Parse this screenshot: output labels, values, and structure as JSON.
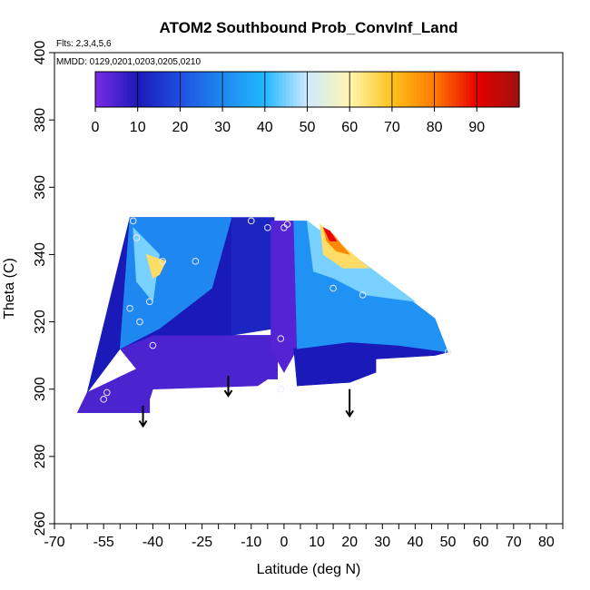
{
  "chart_data": {
    "type": "heatmap",
    "title": "ATOM2 Southbound Prob_ConvInf_Land",
    "flights_note": "Flts: 2,3,4,5,6",
    "dates_note": "MMDD: 0129,0201,0203,0205,0210",
    "xlabel": "Latitude (deg N)",
    "ylabel": "Theta (C)",
    "xlim": [
      -70,
      85
    ],
    "ylim": [
      260,
      400
    ],
    "x_tick_labels": [
      "-70",
      "-55",
      "-40",
      "-25",
      "-10",
      "0",
      "10",
      "20",
      "30",
      "40",
      "50",
      "60",
      "70",
      "80"
    ],
    "x_tick_values": [
      -70,
      -55,
      -40,
      -25,
      -10,
      0,
      10,
      20,
      30,
      40,
      50,
      60,
      70,
      80
    ],
    "x_minor_ticks": [
      -65,
      -60,
      -50,
      -45,
      -35,
      -30,
      -20,
      -15,
      -5,
      5,
      15,
      25,
      35,
      45,
      55,
      65,
      75,
      85
    ],
    "y_tick_labels": [
      "260",
      "280",
      "300",
      "320",
      "340",
      "360",
      "380",
      "400"
    ],
    "y_tick_values": [
      260,
      280,
      300,
      320,
      340,
      360,
      380,
      400
    ],
    "colorbar": {
      "range": [
        0,
        100
      ],
      "tick_labels": [
        "0",
        "10",
        "20",
        "30",
        "40",
        "50",
        "60",
        "70",
        "80",
        "90"
      ],
      "tick_values": [
        0,
        10,
        20,
        30,
        40,
        50,
        60,
        70,
        80,
        90
      ],
      "colors": [
        "#7B2BE6",
        "#1A1AB8",
        "#1F4FE0",
        "#1E88F0",
        "#22B8FF",
        "#CFE9FF",
        "#FFF6B0",
        "#FFC21A",
        "#FF7A00",
        "#E80000",
        "#9E1010"
      ]
    },
    "regions": [
      {
        "name": "southern-base-band",
        "value": 5,
        "polygon": [
          [
            -63,
            293
          ],
          [
            -41,
            293
          ],
          [
            -41,
            297
          ],
          [
            -40,
            300
          ],
          [
            -8,
            301
          ],
          [
            -5,
            303
          ],
          [
            -2,
            303
          ],
          [
            -2,
            312
          ],
          [
            -30,
            312
          ],
          [
            -45,
            306
          ],
          [
            -60,
            299
          ]
        ]
      },
      {
        "name": "southern-lower-band",
        "value": 5,
        "polygon": [
          [
            -45,
            306
          ],
          [
            -30,
            312
          ],
          [
            -2,
            312
          ],
          [
            -2,
            316
          ],
          [
            -40,
            316
          ],
          [
            -50,
            312
          ]
        ]
      },
      {
        "name": "southern-dark-body",
        "value": 10,
        "polygon": [
          [
            -60,
            299
          ],
          [
            -47,
            351
          ],
          [
            -16,
            351
          ],
          [
            -16,
            316
          ],
          [
            -40,
            316
          ],
          [
            -50,
            312
          ]
        ]
      },
      {
        "name": "southern-inner-wedge",
        "value": 30,
        "polygon": [
          [
            -50,
            312
          ],
          [
            -47,
            351
          ],
          [
            -16,
            351
          ],
          [
            -22,
            330
          ],
          [
            -38,
            318
          ]
        ]
      },
      {
        "name": "southern-light-core",
        "value": 45,
        "polygon": [
          [
            -46,
            348
          ],
          [
            -38,
            340
          ],
          [
            -40,
            326
          ],
          [
            -45,
            332
          ]
        ]
      },
      {
        "name": "southern-peak",
        "value": 65,
        "polygon": [
          [
            -42,
            340
          ],
          [
            -36,
            338
          ],
          [
            -38,
            334
          ],
          [
            -40,
            333
          ]
        ]
      },
      {
        "name": "central-column",
        "value": 12,
        "polygon": [
          [
            -16,
            351
          ],
          [
            -3,
            351
          ],
          [
            -3,
            318
          ],
          [
            -16,
            316
          ]
        ]
      },
      {
        "name": "central-trough",
        "value": 4,
        "polygon": [
          [
            -4,
            350
          ],
          [
            3,
            350
          ],
          [
            4,
            312
          ],
          [
            0,
            305
          ],
          [
            -4,
            312
          ]
        ]
      },
      {
        "name": "northern-dark-base",
        "value": 10,
        "polygon": [
          [
            3,
            312
          ],
          [
            4,
            301
          ],
          [
            20,
            302
          ],
          [
            28,
            305
          ],
          [
            28,
            309
          ],
          [
            46,
            310
          ],
          [
            50,
            311
          ],
          [
            35,
            313
          ],
          [
            20,
            314
          ]
        ]
      },
      {
        "name": "northern-blue",
        "value": 32,
        "polygon": [
          [
            3,
            350
          ],
          [
            7,
            350
          ],
          [
            46,
            321
          ],
          [
            50,
            311
          ],
          [
            35,
            313
          ],
          [
            20,
            314
          ],
          [
            4,
            312
          ]
        ]
      },
      {
        "name": "northern-light",
        "value": 45,
        "polygon": [
          [
            7,
            350
          ],
          [
            14,
            345
          ],
          [
            40,
            326
          ],
          [
            25,
            328
          ],
          [
            15,
            333
          ],
          [
            9,
            335
          ]
        ]
      },
      {
        "name": "northern-yellow",
        "value": 65,
        "polygon": [
          [
            11,
            349
          ],
          [
            15,
            345
          ],
          [
            26,
            336
          ],
          [
            18,
            336
          ],
          [
            12,
            340
          ]
        ]
      },
      {
        "name": "northern-orange",
        "value": 78,
        "polygon": [
          [
            12,
            348
          ],
          [
            15,
            346
          ],
          [
            20,
            340
          ],
          [
            16,
            341
          ],
          [
            13,
            344
          ]
        ]
      },
      {
        "name": "northern-red",
        "value": 90,
        "polygon": [
          [
            12,
            348
          ],
          [
            14,
            347
          ],
          [
            16,
            344
          ],
          [
            14,
            344
          ]
        ]
      }
    ],
    "sample_points": [
      [
        -55,
        297
      ],
      [
        -54,
        299
      ],
      [
        -46,
        350
      ],
      [
        -45,
        345
      ],
      [
        -47,
        324
      ],
      [
        -44,
        320
      ],
      [
        -41,
        326
      ],
      [
        -40,
        313
      ],
      [
        -37,
        338
      ],
      [
        -27,
        338
      ],
      [
        -10,
        350
      ],
      [
        -5,
        348
      ],
      [
        0,
        348
      ],
      [
        1,
        349
      ],
      [
        -1,
        315
      ],
      [
        -1,
        300
      ],
      [
        15,
        330
      ],
      [
        24,
        328
      ],
      [
        50,
        311
      ]
    ],
    "arrows": [
      {
        "x": -43,
        "y_top": 295,
        "y_bottom": 289
      },
      {
        "x": -17,
        "y_top": 304,
        "y_bottom": 298
      },
      {
        "x": 20,
        "y_top": 300,
        "y_bottom": 292
      }
    ]
  }
}
